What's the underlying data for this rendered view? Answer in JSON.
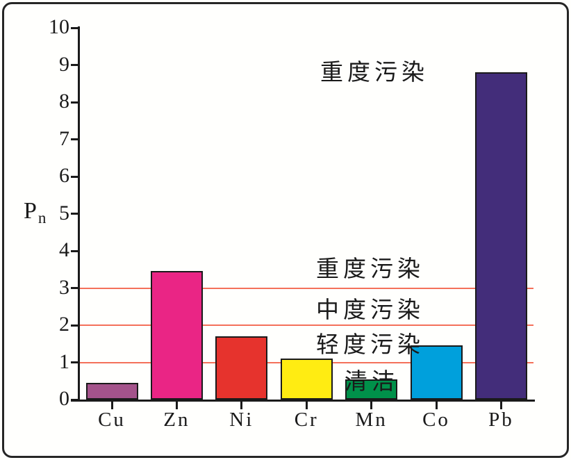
{
  "chart_data": {
    "type": "bar",
    "title": "",
    "xlabel": "",
    "ylabel_base": "P",
    "ylabel_sub": "n",
    "categories": [
      "Cu",
      "Zn",
      "Ni",
      "Cr",
      "Mn",
      "Co",
      "Pb"
    ],
    "values": [
      0.45,
      3.45,
      1.7,
      1.1,
      0.55,
      1.45,
      8.8
    ],
    "bar_colors": [
      "#A4538B",
      "#EA2585",
      "#E6332D",
      "#FFEC12",
      "#00914A",
      "#00A0DC",
      "#432D7A"
    ],
    "ylim": [
      0,
      10
    ],
    "yticks": [
      0,
      1,
      2,
      3,
      4,
      5,
      6,
      7,
      8,
      9,
      10
    ],
    "grid": {
      "values": [
        1,
        2,
        3
      ],
      "color": "#F4705A",
      "style": "solid horizontal threshold lines"
    },
    "legend": "none",
    "annotations": [
      {
        "text": "重度污染",
        "cx": 539,
        "cy": 101,
        "meaning": "heavy pollution (top label near Pb bar)"
      },
      {
        "text": "重度污染",
        "cx": 533,
        "cy": 384,
        "meaning": "heavy pollution zone, above line y=3"
      },
      {
        "text": "中度污染",
        "cx": 533,
        "cy": 443,
        "meaning": "moderate pollution zone, between y=2 and y=3"
      },
      {
        "text": "轻度污染",
        "cx": 533,
        "cy": 493,
        "meaning": "light pollution zone, between y=1 and y=2"
      },
      {
        "text": "清洁",
        "cx": 535,
        "cy": 546,
        "meaning": "clean zone, below y=1"
      }
    ]
  }
}
